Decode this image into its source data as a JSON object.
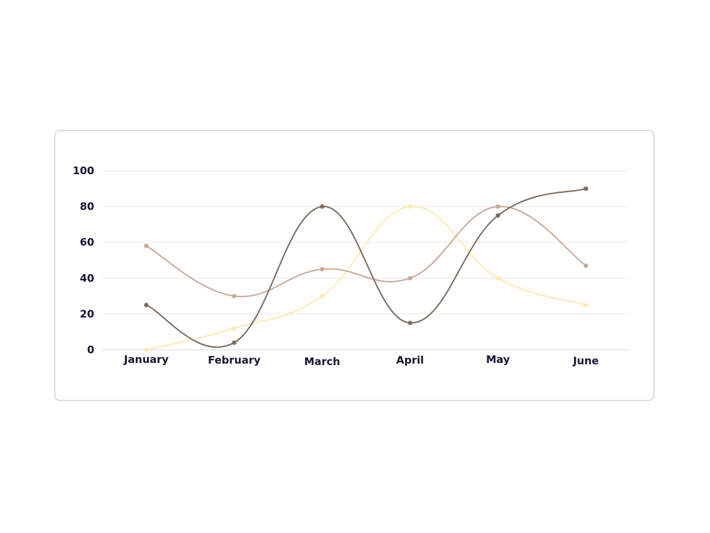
{
  "chart_data": {
    "type": "line",
    "title": "",
    "xlabel": "",
    "ylabel": "",
    "categories": [
      "January",
      "February",
      "March",
      "April",
      "May",
      "June"
    ],
    "ylim": [
      0,
      100
    ],
    "yticks": [
      0,
      20,
      40,
      60,
      80,
      100
    ],
    "grid": true,
    "legend": "none",
    "smooth": true,
    "series": [
      {
        "color": "#ffe8b3",
        "values": [
          0,
          12,
          30,
          80,
          40,
          25
        ]
      },
      {
        "color": "#c9ab9b",
        "values": [
          58,
          30,
          45,
          40,
          80,
          47
        ]
      },
      {
        "color": "#7d6b5d",
        "values": [
          25,
          4,
          80,
          15,
          75,
          90
        ]
      }
    ]
  }
}
